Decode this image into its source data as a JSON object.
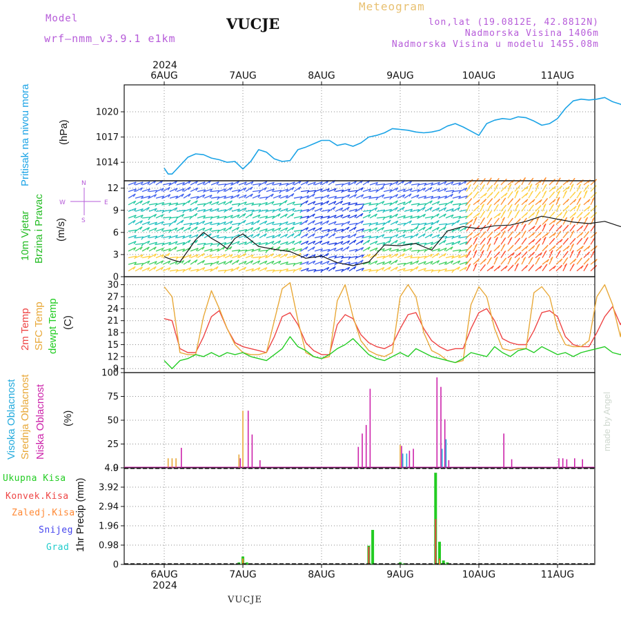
{
  "header": {
    "model_label": "Model",
    "model_name": "wrf—nmm_v3.9.1  e1km",
    "station": "VUCJE",
    "title": "Meteogram",
    "lonlat": "lon,lat (19.0812E, 42.8812N)",
    "altitude": "Nadmorska Visina 1406m",
    "model_altitude": "Nadmorska Visina u modelu 1455.08m"
  },
  "footer": {
    "station": "VUCJE",
    "watermark": "made by Angel"
  },
  "year": "2024",
  "days": [
    "6AUG",
    "7AUG",
    "8AUG",
    "9AUG",
    "10AUG",
    "11AUG"
  ],
  "colors": {
    "pressure": "#1aa3e6",
    "temp2m": "#ee4444",
    "tempSfc": "#e8a838",
    "dewpt": "#22cc22",
    "cloudHigh": "#22aadd",
    "cloudMid": "#e8a838",
    "cloudLow": "#cc22aa",
    "precipTotal": "#22cc22",
    "precipConv": "#ee4444",
    "precipStrat": "#ff8833",
    "snow": "#4444ee",
    "graupel": "#22cccc",
    "wind_dir_label": "#b65bd9"
  },
  "labels": {
    "pressure": "Pritisak na nivou mora",
    "pressure_unit": "(hPa)",
    "wind_a": "10m Vjetar",
    "wind_b": "Brzina i Pravac",
    "wind_unit": "(m/s)",
    "compass_n": "N",
    "compass_s": "S",
    "compass_w": "W",
    "compass_e": "E",
    "temp_2m": "2m Temp",
    "temp_sfc": "SFC Temp",
    "temp_dew": "dewpt Temp",
    "temp_unit": "(C)",
    "cloud_high": "Visoka Oblacnost",
    "cloud_mid": "Srednja Oblacnost",
    "cloud_low": "Niska Oblacnost",
    "cloud_unit": "(%)",
    "precip_unit": "1hr Precip (mm)",
    "legend_total": "Ukupna Kisa",
    "legend_conv": "Konvek.Kisa",
    "legend_strat": "Zaledj.Kisa",
    "legend_snow": "Snijeg",
    "legend_graupel": "Grad"
  },
  "chart_data": [
    {
      "type": "line",
      "name": "pressure",
      "ylim": [
        1011.8,
        1023.2
      ],
      "yticks": [
        1014,
        1017,
        1020
      ],
      "x": [
        0,
        0.05,
        0.1,
        0.2,
        0.3,
        0.4,
        0.5,
        0.6,
        0.7,
        0.8,
        0.9,
        1.0,
        1.1,
        1.2,
        1.3,
        1.4,
        1.5,
        1.6,
        1.7,
        1.8,
        1.9,
        2.0,
        2.1,
        2.2,
        2.3,
        2.4,
        2.5,
        2.6,
        2.7,
        2.8,
        2.9,
        3.0,
        3.1,
        3.2,
        3.3,
        3.4,
        3.5,
        3.6,
        3.7,
        3.8,
        3.9,
        4.0,
        4.1,
        4.2,
        4.3,
        4.4,
        4.5,
        4.6,
        4.7,
        4.8,
        4.9,
        5.0,
        5.1,
        5.2,
        5.3,
        5.4,
        5.5,
        5.6,
        5.7,
        5.8,
        5.9,
        6.0
      ],
      "values": [
        1013.3,
        1012.6,
        1012.6,
        1013.6,
        1014.6,
        1015.0,
        1014.9,
        1014.5,
        1014.3,
        1014.0,
        1014.1,
        1013.2,
        1014.1,
        1015.5,
        1015.2,
        1014.4,
        1014.1,
        1014.2,
        1015.5,
        1015.8,
        1016.2,
        1016.6,
        1016.6,
        1016.0,
        1016.2,
        1015.9,
        1016.3,
        1017.0,
        1017.2,
        1017.5,
        1018.0,
        1017.9,
        1017.8,
        1017.6,
        1017.5,
        1017.6,
        1017.8,
        1018.3,
        1018.6,
        1018.2,
        1017.7,
        1017.2,
        1018.6,
        1019.0,
        1019.2,
        1019.1,
        1019.4,
        1019.3,
        1018.9,
        1018.4,
        1018.6,
        1019.2,
        1020.4,
        1021.3,
        1021.5,
        1021.4,
        1021.5,
        1021.7,
        1021.2,
        1020.9,
        1020.4,
        1019.8
      ]
    },
    {
      "type": "line",
      "name": "wind",
      "ylim": [
        0,
        13
      ],
      "yticks": [
        0,
        3,
        6,
        9,
        12
      ],
      "x": [
        0,
        0.1,
        0.2,
        0.3,
        0.4,
        0.5,
        0.6,
        0.7,
        0.8,
        0.9,
        1.0,
        1.2,
        1.4,
        1.6,
        1.8,
        2.0,
        2.2,
        2.4,
        2.6,
        2.8,
        3.0,
        3.2,
        3.4,
        3.6,
        3.8,
        4.0,
        4.2,
        4.4,
        4.6,
        4.8,
        5.0,
        5.2,
        5.4,
        5.6,
        5.8,
        6.0
      ],
      "values": [
        2.7,
        2.3,
        2.0,
        3.5,
        5.0,
        6.0,
        5.2,
        4.6,
        3.8,
        5.2,
        5.8,
        4.1,
        3.7,
        3.4,
        2.5,
        2.8,
        1.9,
        1.5,
        2.0,
        4.3,
        4.2,
        4.5,
        3.6,
        6.2,
        6.8,
        6.5,
        6.9,
        7.0,
        7.5,
        8.2,
        7.8,
        7.4,
        7.2,
        7.5,
        6.8,
        7.0
      ]
    },
    {
      "type": "line",
      "name": "temperature",
      "ylim": [
        8,
        32
      ],
      "yticks": [
        9,
        12,
        15,
        18,
        21,
        24,
        27,
        30
      ],
      "x": [
        0,
        0.1,
        0.2,
        0.3,
        0.4,
        0.5,
        0.6,
        0.7,
        0.8,
        0.9,
        1.0,
        1.1,
        1.2,
        1.3,
        1.4,
        1.5,
        1.6,
        1.7,
        1.8,
        1.9,
        2.0,
        2.1,
        2.2,
        2.3,
        2.4,
        2.5,
        2.6,
        2.7,
        2.8,
        2.9,
        3.0,
        3.1,
        3.2,
        3.3,
        3.4,
        3.5,
        3.6,
        3.7,
        3.8,
        3.9,
        4.0,
        4.1,
        4.2,
        4.3,
        4.4,
        4.5,
        4.6,
        4.7,
        4.8,
        4.9,
        5.0,
        5.1,
        5.2,
        5.3,
        5.4,
        5.5,
        5.6,
        5.7,
        5.8,
        5.9,
        6.0
      ],
      "series": [
        {
          "name": "2m Temp",
          "values": [
            21.5,
            21.0,
            14.0,
            13.0,
            13.0,
            17.0,
            22.0,
            23.5,
            19.0,
            15.5,
            14.5,
            14.0,
            13.5,
            13.0,
            17.0,
            22.0,
            23.0,
            20.0,
            15.5,
            13.5,
            12.5,
            12.5,
            20.0,
            22.5,
            21.5,
            17.5,
            15.5,
            14.5,
            14.0,
            15.0,
            19.0,
            22.5,
            23.0,
            19.0,
            16.0,
            14.5,
            13.5,
            14.0,
            14.0,
            19.0,
            23.0,
            24.0,
            21.0,
            16.5,
            15.5,
            15.0,
            15.0,
            18.5,
            23.0,
            23.5,
            22.0,
            17.0,
            15.0,
            14.5,
            14.5,
            18.0,
            22.0,
            24.5,
            20.0,
            24.0,
            25.0
          ]
        },
        {
          "name": "SFC Temp",
          "values": [
            29.5,
            27.0,
            13.0,
            12.5,
            12.5,
            22.0,
            28.5,
            24.0,
            19.0,
            15.0,
            13.0,
            12.5,
            12.5,
            13.0,
            21.0,
            29.0,
            30.5,
            21.0,
            13.0,
            12.0,
            11.5,
            12.0,
            26.0,
            30.0,
            22.0,
            16.0,
            13.5,
            12.5,
            12.0,
            13.0,
            27.0,
            30.0,
            27.0,
            18.0,
            13.5,
            12.5,
            11.0,
            10.5,
            11.0,
            25.0,
            29.5,
            27.0,
            19.0,
            14.0,
            13.5,
            14.0,
            14.0,
            28.0,
            29.5,
            27.0,
            19.0,
            15.0,
            14.5,
            14.5,
            16.0,
            27.0,
            30.0,
            25.0,
            17.0,
            30.0,
            30.5
          ]
        },
        {
          "name": "dewpt Temp",
          "values": [
            11.0,
            9.0,
            11.0,
            11.5,
            12.5,
            12.0,
            13.0,
            12.0,
            13.0,
            12.5,
            13.0,
            12.0,
            11.5,
            11.0,
            12.5,
            14.0,
            17.0,
            14.5,
            13.5,
            12.0,
            11.5,
            12.5,
            14.0,
            15.0,
            16.5,
            14.5,
            12.5,
            11.5,
            11.0,
            12.0,
            13.0,
            12.0,
            14.0,
            13.0,
            12.0,
            11.5,
            11.0,
            10.5,
            11.5,
            13.0,
            12.5,
            12.0,
            14.5,
            13.0,
            12.0,
            13.5,
            14.0,
            13.0,
            14.5,
            13.5,
            12.5,
            13.0,
            12.0,
            13.0,
            13.5,
            14.0,
            14.5,
            13.0,
            12.5,
            14.0,
            12.0
          ]
        }
      ]
    },
    {
      "type": "bar",
      "name": "clouds",
      "ylim": [
        0,
        100
      ],
      "yticks": [
        0,
        25,
        50,
        75,
        100
      ],
      "series": [
        {
          "name": "Visoka Oblacnost",
          "x": [
            3.05,
            3.1,
            3.55,
            3.6
          ],
          "values": [
            15,
            15,
            20,
            30
          ]
        },
        {
          "name": "Srednja Oblacnost",
          "x": [
            0.05,
            0.1,
            0.15,
            0.95,
            1.0,
            3.0
          ],
          "values": [
            10,
            10,
            10,
            14,
            60,
            24
          ]
        },
        {
          "name": "Niska Oblacnost",
          "x": [
            0.2,
            0.95,
            1.05,
            1.1,
            1.2,
            2.45,
            2.5,
            2.55,
            2.6,
            3.0,
            3.1,
            3.15,
            3.45,
            3.5,
            3.55,
            3.6,
            4.3,
            4.4,
            5.0,
            5.05,
            5.1,
            5.2,
            5.3,
            5.95
          ],
          "values": [
            21,
            10,
            60,
            35,
            8,
            22,
            36,
            45,
            83,
            23,
            18,
            20,
            95,
            85,
            51,
            8,
            36,
            9,
            10,
            10,
            9,
            10,
            9,
            6
          ]
        }
      ]
    },
    {
      "type": "bar",
      "name": "precipitation",
      "ylim": [
        0,
        4.9
      ],
      "yticks": [
        0,
        0.98,
        1.96,
        2.94,
        3.92,
        4.9
      ],
      "series": [
        {
          "name": "Ukupna Kisa",
          "x": [
            0.95,
            1.0,
            1.05,
            2.6,
            2.65,
            3.0,
            3.05,
            3.45,
            3.5,
            3.55,
            3.6
          ],
          "values": [
            0.1,
            0.4,
            0.1,
            0.95,
            1.75,
            0.1,
            0.05,
            4.65,
            1.15,
            0.2,
            0.1
          ]
        },
        {
          "name": "Konvek.Kisa",
          "x": [
            1.0,
            2.6,
            3.45,
            3.5
          ],
          "values": [
            0.2,
            0.9,
            2.3,
            0.3
          ]
        },
        {
          "name": "Zaledj.Kisa",
          "x": [
            1.0,
            3.5
          ],
          "values": [
            0.3,
            0.2
          ]
        },
        {
          "name": "Snijeg",
          "x": [],
          "values": []
        },
        {
          "name": "Grad",
          "x": [],
          "values": []
        }
      ]
    }
  ]
}
